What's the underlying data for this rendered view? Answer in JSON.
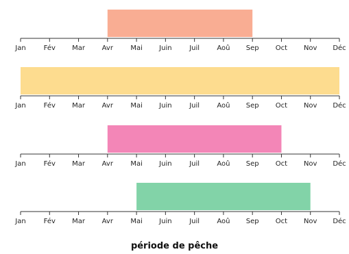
{
  "chart_data": {
    "type": "bar",
    "orientation": "horizontal-range",
    "months": [
      "Jan",
      "Fév",
      "Mar",
      "Avr",
      "Mai",
      "Juin",
      "Juil",
      "Aoû",
      "Sep",
      "Oct",
      "Nov",
      "Déc"
    ],
    "xlabel": "période de pêche",
    "grid": false,
    "series": [
      {
        "start": "Avr",
        "end": "Sep",
        "color": "#f9ad93"
      },
      {
        "start": "Jan",
        "end": "Déc",
        "color": "#fddc8f"
      },
      {
        "start": "Avr",
        "end": "Oct",
        "color": "#f386b7"
      },
      {
        "start": "Mai",
        "end": "Nov",
        "color": "#82d3a8"
      }
    ]
  }
}
